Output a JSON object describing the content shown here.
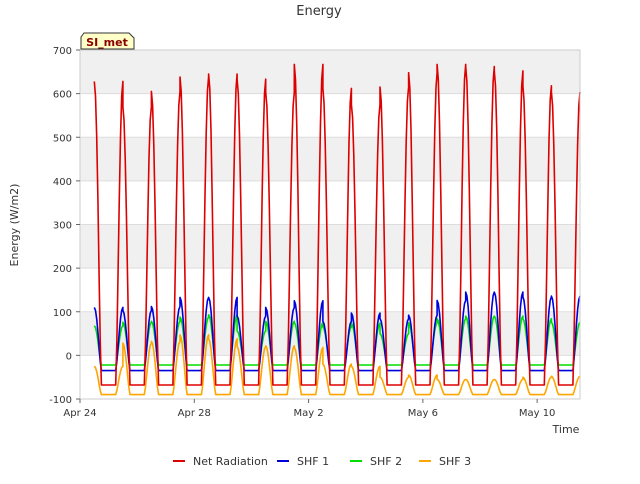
{
  "chart_data": {
    "type": "line",
    "title": "Energy",
    "badge": "SI_met",
    "xlabel": "Time",
    "ylabel": "Energy (W/m2)",
    "ylim": [
      -100,
      700
    ],
    "yticks": [
      -100,
      0,
      100,
      200,
      300,
      400,
      500,
      600,
      700
    ],
    "xlim": [
      "2023-04-24",
      "2023-05-11T12:00"
    ],
    "xticks": [
      {
        "date": "2023-04-24",
        "label": "Apr 24"
      },
      {
        "date": "2023-04-28",
        "label": "Apr 28"
      },
      {
        "date": "2023-05-02",
        "label": "May 2"
      },
      {
        "date": "2023-05-06",
        "label": "May 6"
      },
      {
        "date": "2023-05-10",
        "label": "May 10"
      }
    ],
    "grid": true,
    "background_bands": true,
    "legend_position": "bottom",
    "series": [
      {
        "name": "Net Radiation",
        "color": "#dd0000",
        "daily_peak": [
          628,
          570,
          605,
          638,
          645,
          633,
          603,
          667,
          612,
          575,
          615,
          648,
          667,
          662,
          652,
          618,
          604
        ],
        "night_min": -68
      },
      {
        "name": "SHF 1",
        "color": "#0000dd",
        "daily_peak": [
          110,
          103,
          112,
          133,
          133,
          90,
          110,
          125,
          78,
          97,
          84,
          92,
          126,
          145,
          145,
          134,
          136
        ],
        "night_min": -35
      },
      {
        "name": "SHF 2",
        "color": "#00dd00",
        "daily_peak": [
          68,
          76,
          78,
          88,
          93,
          56,
          78,
          75,
          65,
          74,
          50,
          75,
          84,
          90,
          90,
          84,
          76
        ],
        "night_min": -22
      },
      {
        "name": "SHF 3",
        "color": "#ffa500",
        "daily_peak": [
          -25,
          28,
          32,
          47,
          38,
          20,
          22,
          18,
          -20,
          -25,
          -50,
          -45,
          -55,
          -55,
          -55,
          -50,
          -48
        ],
        "night_min": -90
      }
    ]
  }
}
